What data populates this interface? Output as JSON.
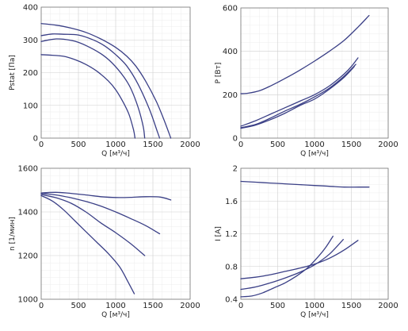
{
  "colors": {
    "curve": "#3a3f86",
    "grid": "#cfcfcf",
    "text": "#222222"
  },
  "chart_data": [
    {
      "type": "line",
      "xlabel": "Q [м³/ч]",
      "ylabel": "Pstat [Па]",
      "xlim": [
        0,
        2000
      ],
      "ylim": [
        0,
        400
      ],
      "xticks": [
        0,
        500,
        1000,
        1500,
        2000
      ],
      "yticks": [
        0,
        100,
        200,
        300,
        400
      ],
      "grid": true,
      "series": [
        {
          "x": [
            0,
            200,
            400,
            600,
            800,
            1000,
            1150,
            1270,
            1400,
            1550,
            1650,
            1740
          ],
          "y": [
            350,
            345,
            336,
            323,
            303,
            277,
            250,
            220,
            175,
            110,
            55,
            0
          ]
        },
        {
          "x": [
            0,
            150,
            300,
            500,
            700,
            850,
            1000,
            1150,
            1300,
            1450,
            1560,
            1590
          ],
          "y": [
            313,
            318,
            317,
            315,
            300,
            282,
            255,
            220,
            165,
            90,
            20,
            0
          ]
        },
        {
          "x": [
            0,
            100,
            200,
            300,
            450,
            600,
            800,
            950,
            1100,
            1200,
            1300,
            1370,
            1390
          ],
          "y": [
            295,
            300,
            303,
            302,
            296,
            283,
            258,
            230,
            190,
            153,
            95,
            35,
            0
          ]
        },
        {
          "x": [
            0,
            150,
            300,
            450,
            600,
            750,
            900,
            1000,
            1100,
            1180,
            1240,
            1260
          ],
          "y": [
            255,
            253,
            250,
            240,
            225,
            204,
            175,
            148,
            110,
            72,
            25,
            0
          ]
        }
      ]
    },
    {
      "type": "line",
      "xlabel": "Q [м³/ч]",
      "ylabel": "P [Вт]",
      "xlim": [
        0,
        2000
      ],
      "ylim": [
        0,
        600
      ],
      "xticks": [
        0,
        500,
        1000,
        1500,
        2000
      ],
      "yticks": [
        0,
        200,
        400,
        600
      ],
      "grid": true,
      "series": [
        {
          "x": [
            0,
            100,
            250,
            400,
            600,
            800,
            1000,
            1200,
            1400,
            1600,
            1740
          ],
          "y": [
            205,
            207,
            218,
            240,
            275,
            313,
            355,
            400,
            450,
            515,
            565
          ]
        },
        {
          "x": [
            0,
            200,
            400,
            600,
            800,
            1000,
            1200,
            1400,
            1500,
            1590
          ],
          "y": [
            55,
            80,
            110,
            140,
            170,
            200,
            240,
            295,
            330,
            370
          ]
        },
        {
          "x": [
            0,
            200,
            400,
            600,
            800,
            1000,
            1200,
            1400,
            1560
          ],
          "y": [
            48,
            63,
            92,
            125,
            155,
            190,
            230,
            285,
            340
          ]
        },
        {
          "x": [
            0,
            200,
            400,
            600,
            800,
            1000,
            1200,
            1400,
            1540
          ],
          "y": [
            45,
            60,
            85,
            115,
            150,
            180,
            225,
            280,
            330
          ]
        }
      ]
    },
    {
      "type": "line",
      "xlabel": "Q [м³/ч]",
      "ylabel": "n [1/мин]",
      "xlim": [
        0,
        2000
      ],
      "ylim": [
        1000,
        1600
      ],
      "xticks": [
        0,
        500,
        1000,
        1500,
        2000
      ],
      "yticks": [
        1000,
        1200,
        1400,
        1600
      ],
      "grid": true,
      "series": [
        {
          "x": [
            0,
            200,
            400,
            600,
            800,
            1000,
            1200,
            1400,
            1600,
            1740
          ],
          "y": [
            1487,
            1490,
            1485,
            1478,
            1470,
            1466,
            1467,
            1470,
            1468,
            1455
          ]
        },
        {
          "x": [
            0,
            200,
            400,
            600,
            800,
            1000,
            1200,
            1400,
            1590
          ],
          "y": [
            1485,
            1478,
            1465,
            1448,
            1427,
            1400,
            1370,
            1338,
            1300
          ]
        },
        {
          "x": [
            0,
            200,
            400,
            600,
            800,
            1000,
            1200,
            1390
          ],
          "y": [
            1480,
            1465,
            1440,
            1400,
            1350,
            1305,
            1255,
            1200
          ]
        },
        {
          "x": [
            0,
            150,
            300,
            450,
            600,
            750,
            900,
            1050,
            1150,
            1250
          ],
          "y": [
            1475,
            1450,
            1410,
            1360,
            1310,
            1260,
            1210,
            1150,
            1090,
            1025
          ]
        }
      ]
    },
    {
      "type": "line",
      "xlabel": "Q [м³/ч]",
      "ylabel": "I [A]",
      "xlim": [
        0,
        2000
      ],
      "ylim": [
        0.4,
        2
      ],
      "xticks": [
        0,
        500,
        1000,
        1500,
        2000
      ],
      "yticks": [
        0.4,
        0.8,
        1.2,
        1.6,
        2
      ],
      "grid": true,
      "series": [
        {
          "x": [
            0,
            200,
            400,
            600,
            800,
            1000,
            1200,
            1400,
            1600,
            1740
          ],
          "y": [
            1.84,
            1.83,
            1.82,
            1.81,
            1.8,
            1.79,
            1.78,
            1.77,
            1.77,
            1.77
          ]
        },
        {
          "x": [
            0,
            200,
            400,
            600,
            800,
            1000,
            1200,
            1400,
            1590
          ],
          "y": [
            0.65,
            0.67,
            0.7,
            0.74,
            0.78,
            0.83,
            0.9,
            1.0,
            1.12
          ]
        },
        {
          "x": [
            0,
            200,
            400,
            600,
            800,
            1000,
            1200,
            1390
          ],
          "y": [
            0.52,
            0.55,
            0.6,
            0.66,
            0.73,
            0.82,
            0.95,
            1.13
          ]
        },
        {
          "x": [
            0,
            150,
            300,
            450,
            600,
            750,
            900,
            1050,
            1150,
            1250
          ],
          "y": [
            0.43,
            0.44,
            0.48,
            0.54,
            0.6,
            0.68,
            0.78,
            0.92,
            1.03,
            1.17
          ]
        }
      ]
    }
  ]
}
